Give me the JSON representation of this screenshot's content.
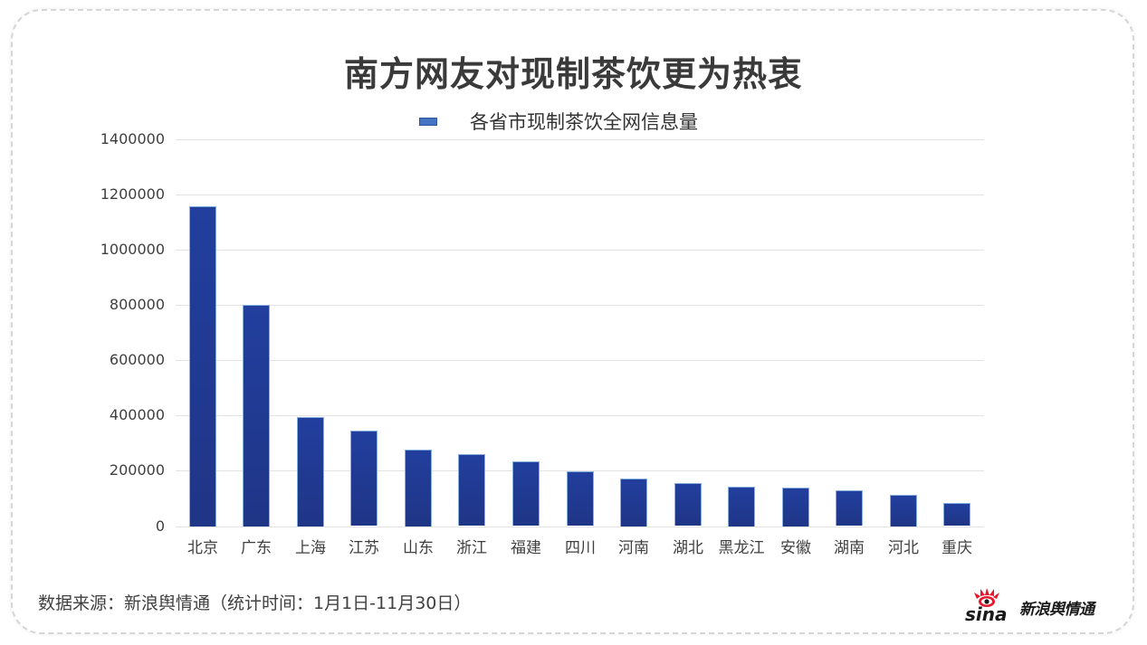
{
  "title": "南方网友对现制茶饮更为热衷",
  "legend": {
    "label": "各省市现制茶饮全网信息量",
    "swatch_color": "#4472c4"
  },
  "footer": {
    "source": "数据来源：新浪舆情通（统计时间：1月1日-11月30日）"
  },
  "logo": {
    "brand": "sina",
    "text": "新浪舆情通"
  },
  "colors": {
    "bar_top": "#223f9e",
    "bar_bottom": "#1f3586",
    "bar_outline": "#86aee0",
    "gridline": "#e3e3e3"
  },
  "y_axis": {
    "ticks": [
      "0",
      "200000",
      "400000",
      "600000",
      "800000",
      "1000000",
      "1200000",
      "1400000"
    ]
  },
  "chart_data": {
    "type": "bar",
    "title": "南方网友对现制茶饮更为热衷",
    "xlabel": "",
    "ylabel": "",
    "ylim": [
      0,
      1400000
    ],
    "yticks": [
      0,
      200000,
      400000,
      600000,
      800000,
      1000000,
      1200000,
      1400000
    ],
    "grid": true,
    "legend_position": "top",
    "categories": [
      "北京",
      "广东",
      "上海",
      "江苏",
      "山东",
      "浙江",
      "福建",
      "四川",
      "河南",
      "湖北",
      "黑龙江",
      "安徽",
      "湖南",
      "河北",
      "重庆"
    ],
    "series": [
      {
        "name": "各省市现制茶饮全网信息量",
        "values": [
          1159000,
          801000,
          396000,
          345000,
          278000,
          259000,
          233000,
          197000,
          173000,
          154000,
          144000,
          140000,
          128000,
          114000,
          83000
        ]
      }
    ],
    "source_note": "数据来源：新浪舆情通（统计时间：1月1日-11月30日）"
  }
}
